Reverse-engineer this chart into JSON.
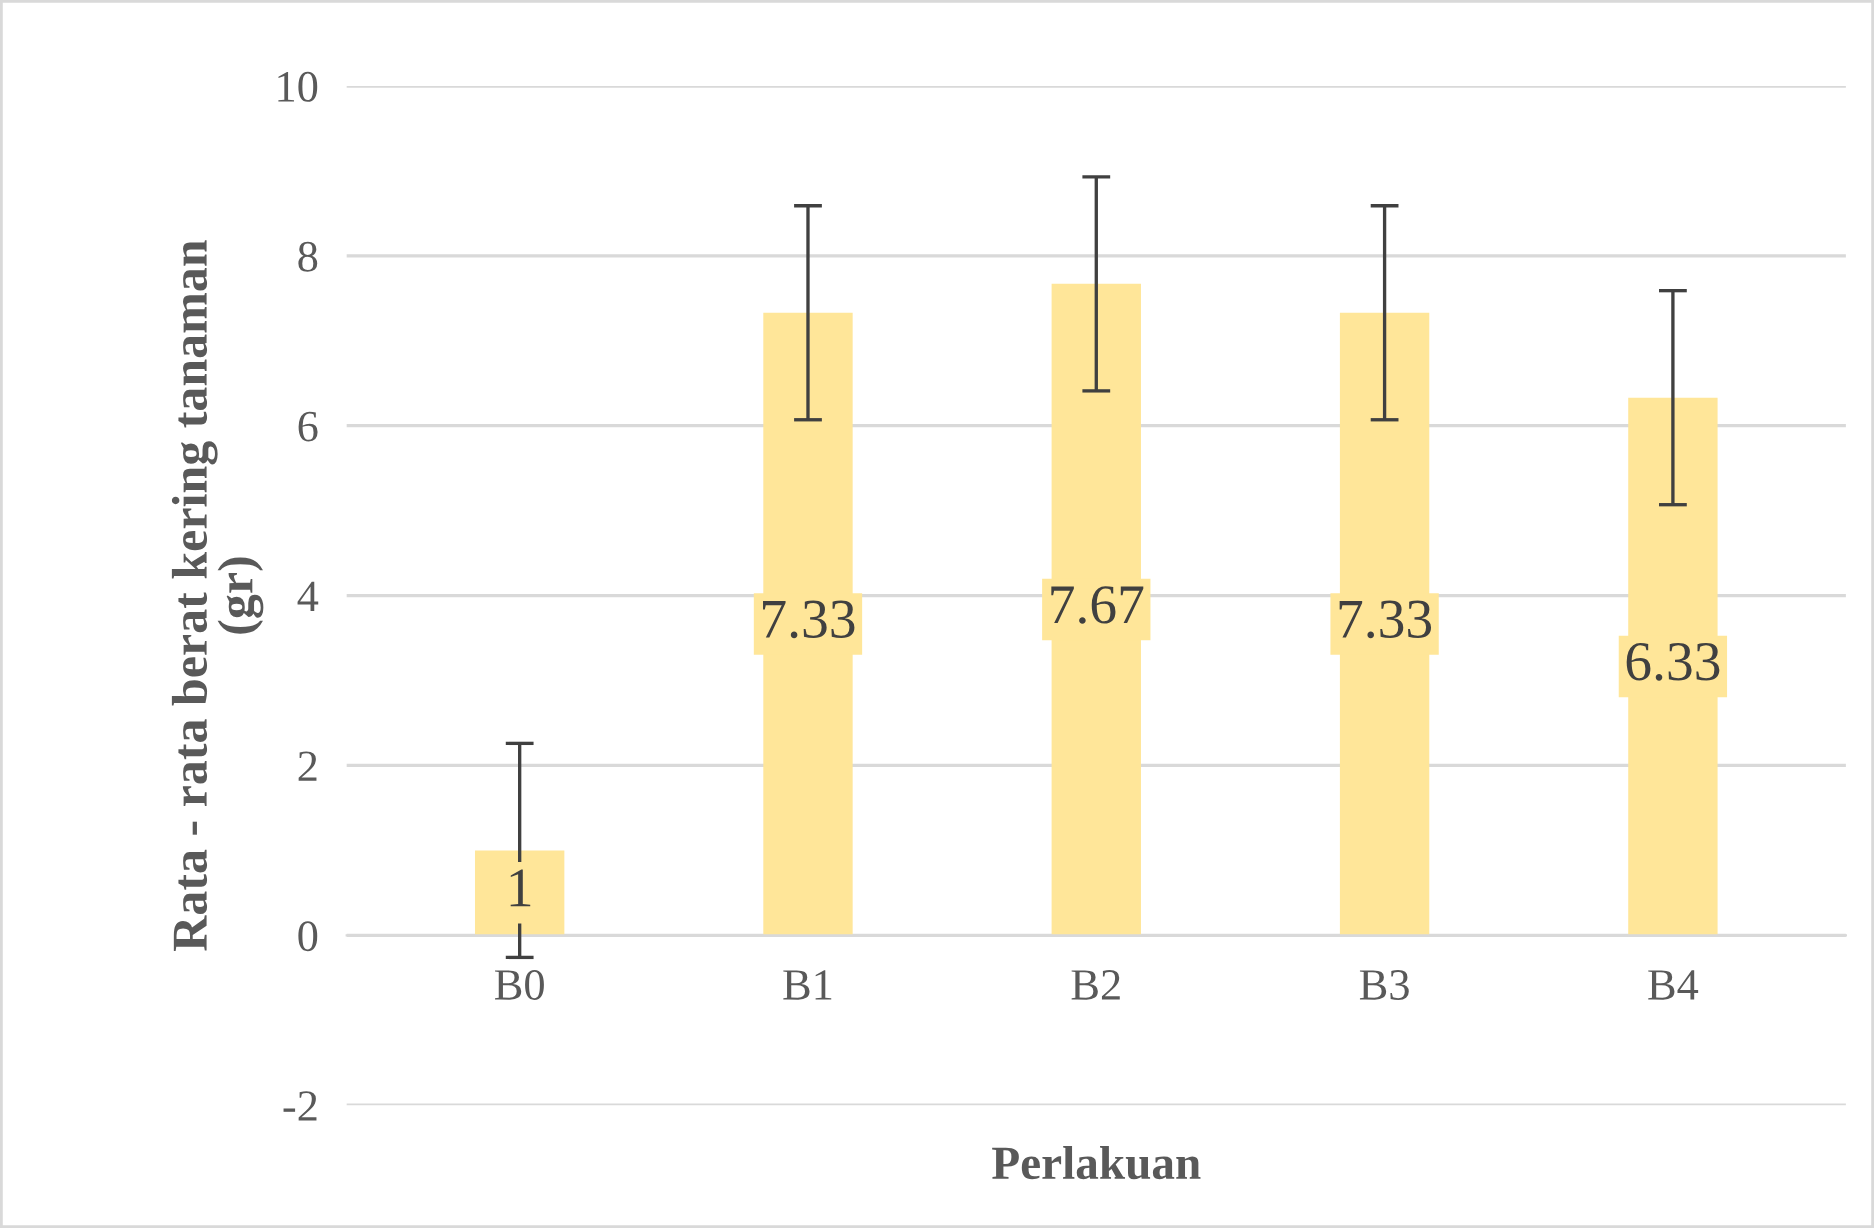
{
  "chart_data": {
    "type": "bar",
    "xlabel": "Perlakuan",
    "ylabel": "Rata - rata berat kering tanaman\n(gr)",
    "categories": [
      "B0",
      "B1",
      "B2",
      "B3",
      "B4"
    ],
    "values": [
      1,
      7.33,
      7.67,
      7.33,
      6.33
    ],
    "errors": [
      1.26,
      1.26,
      1.26,
      1.26,
      1.26
    ],
    "color": "#ffe699",
    "data_labels": true,
    "ylim": [
      -2,
      10
    ],
    "yticks": [
      -2,
      0,
      2,
      4,
      6,
      8,
      10
    ],
    "grid": "y",
    "legend": false
  }
}
